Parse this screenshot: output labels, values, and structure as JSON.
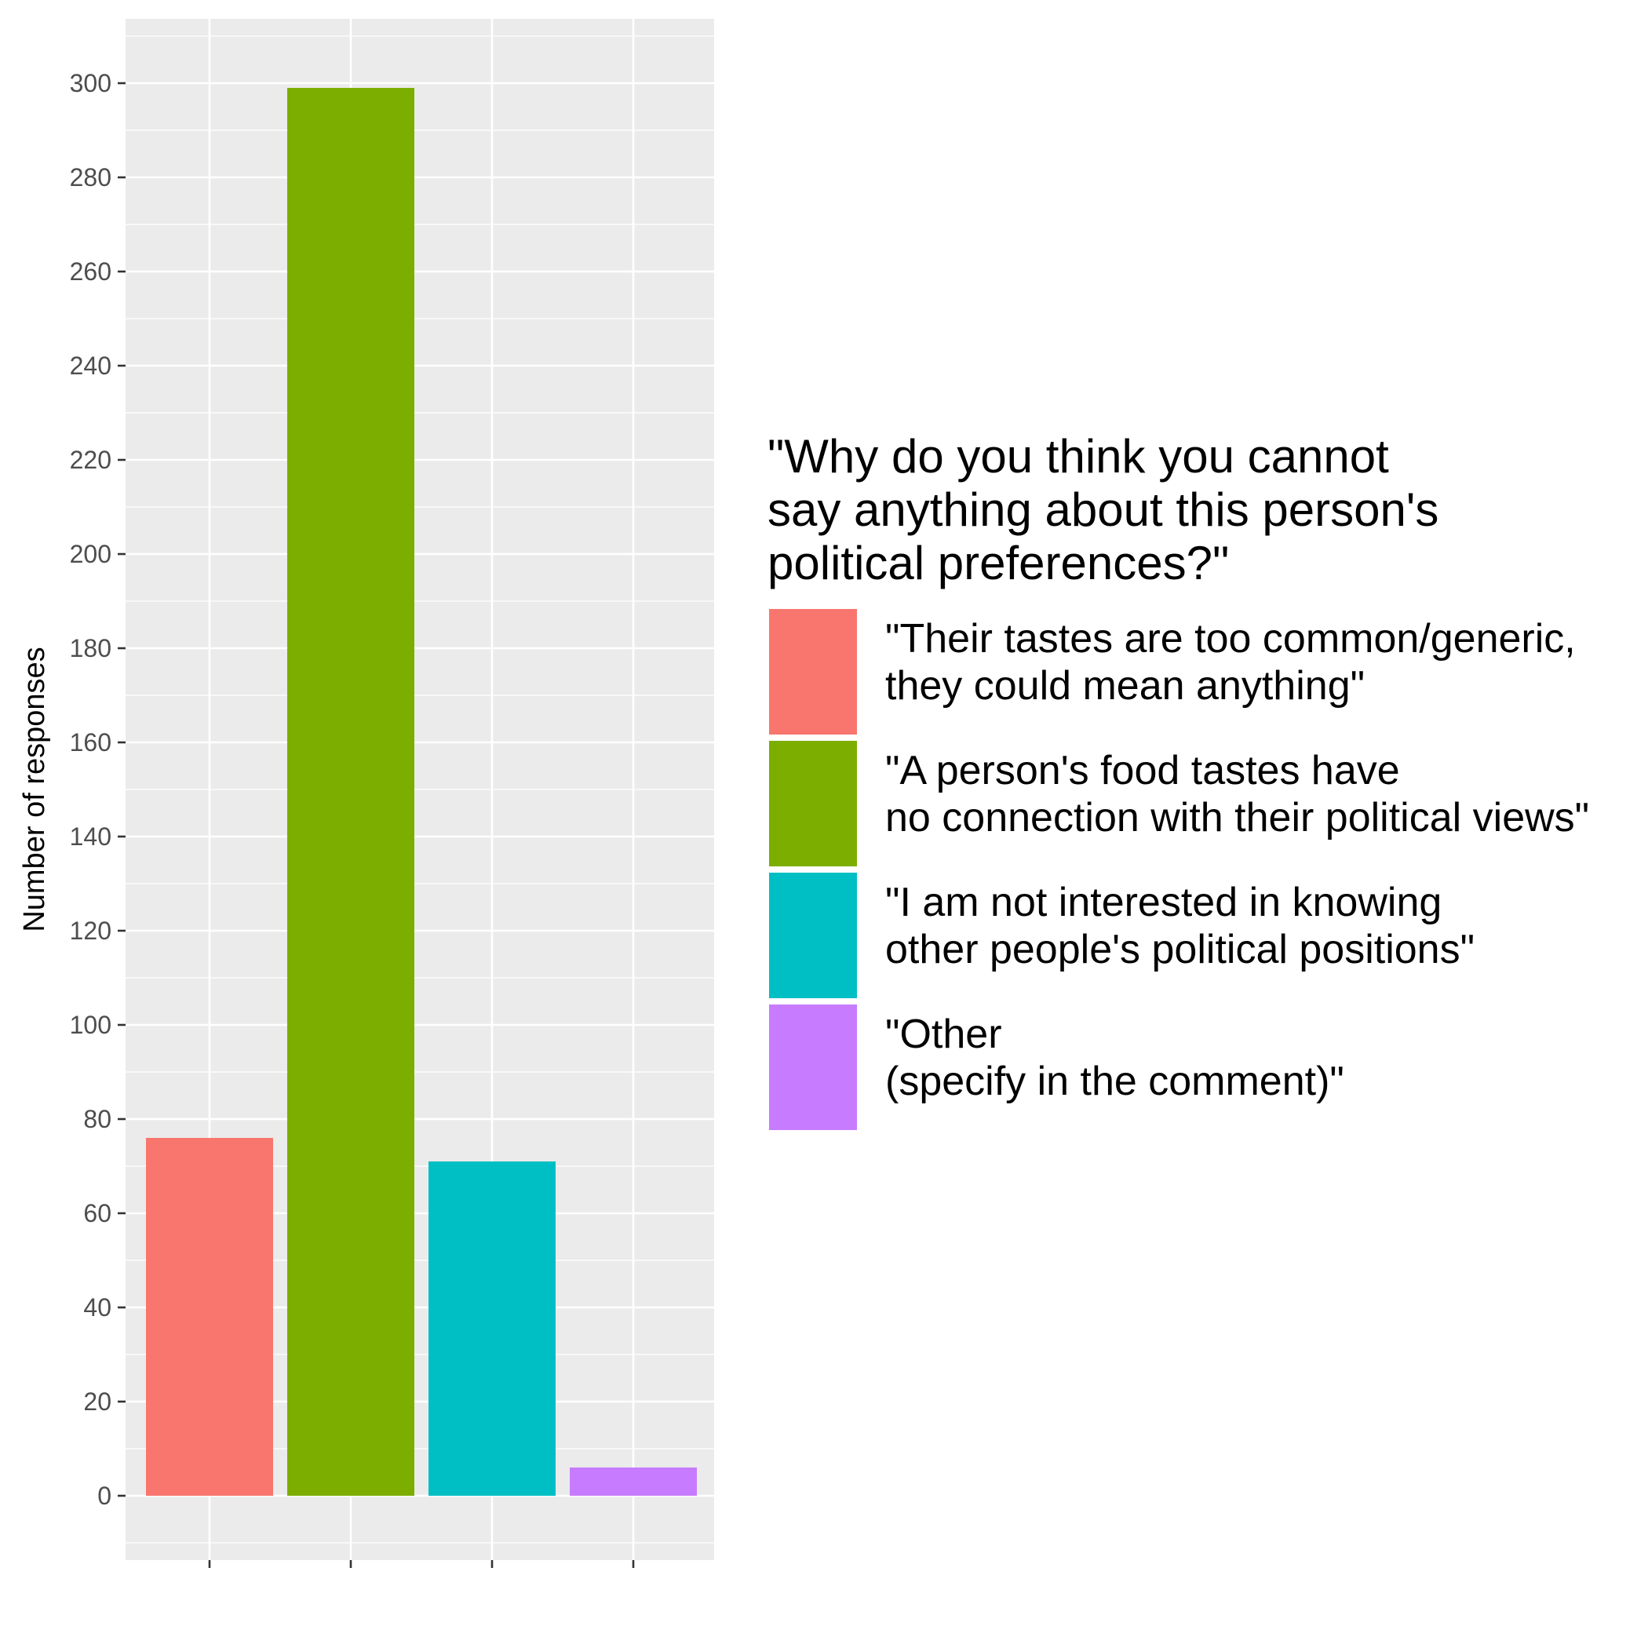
{
  "chart_data": {
    "type": "bar",
    "categories": [
      "\"Their tastes are too common/generic,\nthey could mean anything\"",
      "\"A person's food tastes have\nno connection with their political views\"",
      "\"I am not interested in knowing\nother people's political positions\"",
      "\"Other\n(specify in the comment)\""
    ],
    "values": [
      76,
      299,
      71,
      6
    ],
    "colors": [
      "#F8766D",
      "#7CAE00",
      "#00BFC4",
      "#C77CFF"
    ],
    "ylabel": "Number of responses",
    "xlabel": "",
    "ylim": [
      -15,
      315
    ],
    "yticks": [
      0,
      20,
      40,
      60,
      80,
      100,
      120,
      140,
      160,
      180,
      200,
      220,
      240,
      260,
      280,
      300
    ],
    "grid": true,
    "legend_position": "right",
    "legend_title": "\"Why do you think you cannot\nsay anything about this person's\npolitical preferences?\""
  }
}
